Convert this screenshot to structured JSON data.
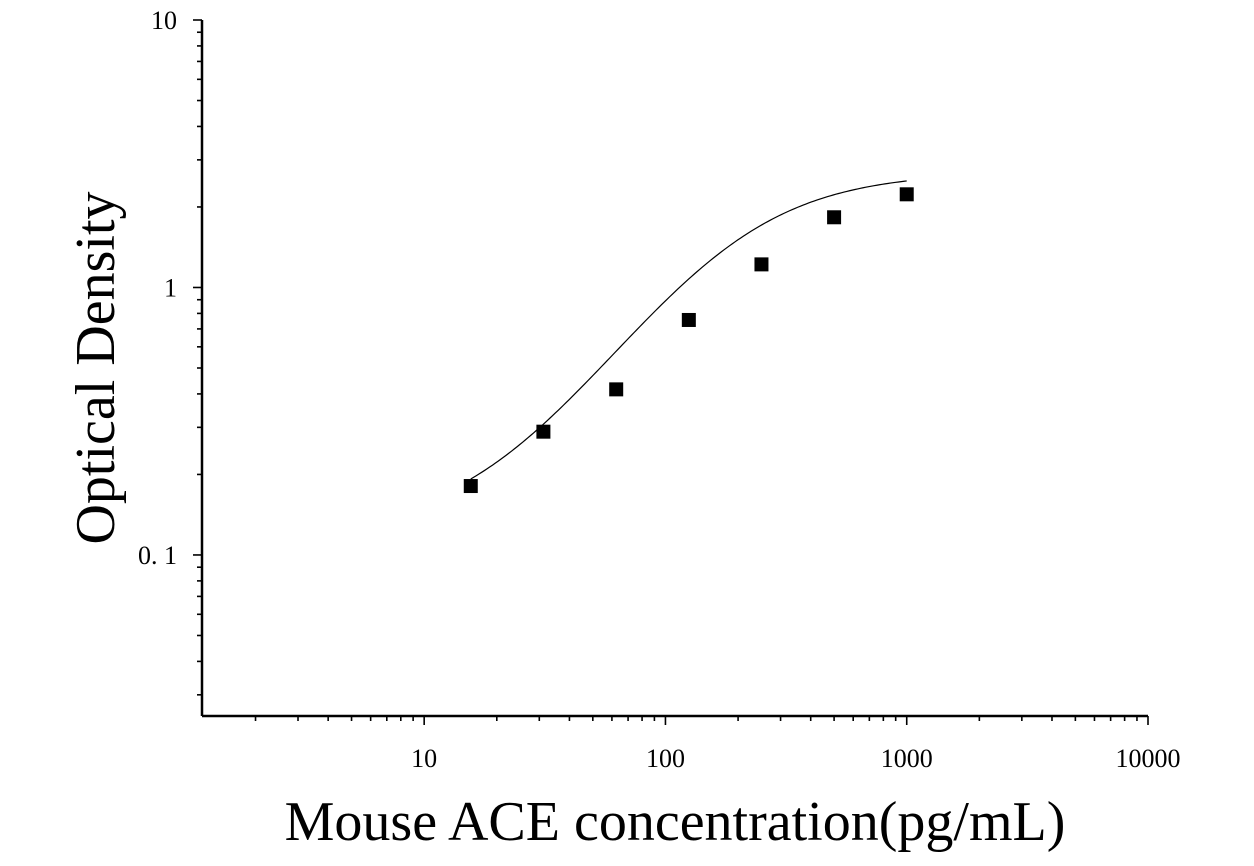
{
  "chart_data": {
    "type": "scatter",
    "title": "",
    "xlabel": "Mouse ACE concentration(pg/mL)",
    "ylabel": "Optical Density",
    "x_scale": "log",
    "y_scale": "log",
    "xlim": [
      1.2,
      10000
    ],
    "ylim": [
      0.025,
      10
    ],
    "x_ticks": [
      {
        "value": 10,
        "label": "10"
      },
      {
        "value": 100,
        "label": "100"
      },
      {
        "value": 1000,
        "label": "1000"
      },
      {
        "value": 10000,
        "label": "10000"
      }
    ],
    "y_ticks": [
      {
        "value": 0.1,
        "label": "0. 1"
      },
      {
        "value": 1,
        "label": "1"
      },
      {
        "value": 10,
        "label": "10"
      }
    ],
    "grid": false,
    "series": [
      {
        "points": [
          {
            "x": 15.6,
            "y": 0.181
          },
          {
            "x": 31.2,
            "y": 0.289
          },
          {
            "x": 62.5,
            "y": 0.416
          },
          {
            "x": 125,
            "y": 0.756
          },
          {
            "x": 250,
            "y": 1.22
          },
          {
            "x": 500,
            "y": 1.83
          },
          {
            "x": 1000,
            "y": 2.23
          }
        ],
        "marker": "square",
        "color": "#000000"
      }
    ],
    "fit_curve": {
      "type": "4PL",
      "A": 0.12,
      "B": 1.45,
      "C": 180,
      "D": 2.7,
      "x_range": [
        15.6,
        1000
      ],
      "color": "#000000"
    }
  }
}
